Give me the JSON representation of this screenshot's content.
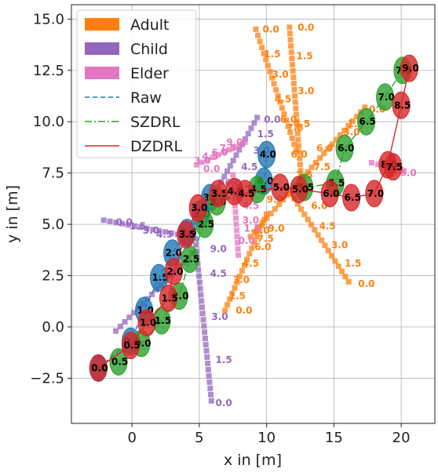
{
  "chart_data": {
    "type": "scatter",
    "xlabel": "x in [m]",
    "ylabel": "y in [m]",
    "xlim": [
      -4.5,
      22.5
    ],
    "ylim": [
      -4.7,
      15.7
    ],
    "xticks": [
      0,
      5,
      10,
      15,
      20
    ],
    "yticks": [
      -2.5,
      0.0,
      2.5,
      5.0,
      7.5,
      10.0,
      12.5,
      15.0
    ],
    "xtick_labels": [
      "0",
      "5",
      "10",
      "15",
      "20"
    ],
    "ytick_labels": [
      "−2.5",
      "0.0",
      "2.5",
      "5.0",
      "7.5",
      "10.0",
      "12.5",
      "15.0"
    ],
    "grid": true,
    "legend_position": "top-left",
    "legend": [
      {
        "label": "Adult",
        "kind": "patch",
        "color": "#ff7f0e"
      },
      {
        "label": "Child",
        "kind": "patch",
        "color": "#9467bd"
      },
      {
        "label": "Elder",
        "kind": "patch",
        "color": "#e377c2"
      },
      {
        "label": "Raw",
        "kind": "line",
        "color": "#1f77b4",
        "dash": "6,4"
      },
      {
        "label": "SZDRL",
        "kind": "line",
        "color": "#2ca02c",
        "dash": "9,3,2,3"
      },
      {
        "label": "DZDRL",
        "kind": "line",
        "color": "#d62728",
        "dash": ""
      }
    ],
    "pedestrians": [
      {
        "group": "Adult",
        "color": "#ff7f0e",
        "start": [
          9.2,
          14.5
        ],
        "end": [
          12.2,
          8.6
        ],
        "labels": [
          [
            "0.0",
            9.7,
            14.5
          ],
          [
            "1.5",
            9.8,
            13.3
          ],
          [
            "3.0",
            10.4,
            12.3
          ],
          [
            "4.5",
            10.6,
            11.1
          ],
          [
            "6.0",
            11.0,
            10.1
          ],
          [
            "7.5",
            11.5,
            9.7
          ]
        ]
      },
      {
        "group": "Adult",
        "color": "#ff7f0e",
        "start": [
          11.7,
          14.6
        ],
        "end": [
          12.6,
          7.0
        ],
        "labels": [
          [
            "0.0",
            12.3,
            14.6
          ],
          [
            "1.5",
            12.2,
            13.2
          ],
          [
            "3.0",
            12.3,
            11.5
          ],
          [
            "4.5",
            12.0,
            9.9
          ],
          [
            "6.0",
            11.8,
            8.4
          ],
          [
            "7.5",
            12.2,
            7.4
          ]
        ]
      },
      {
        "group": "Adult",
        "color": "#ff7f0e",
        "start": [
          17.3,
          10.7
        ],
        "end": [
          8.8,
          4.4
        ],
        "labels": [
          [
            "0.0",
            17.6,
            10.6
          ],
          [
            "1.5",
            16.0,
            9.9
          ],
          [
            "3.0",
            15.7,
            9.5
          ],
          [
            "6.0",
            13.7,
            8.7
          ],
          [
            "7.5",
            13.5,
            7.8
          ],
          [
            "9.0",
            10.0,
            6.2
          ],
          [
            "6.0",
            9.0,
            4.7
          ],
          [
            "7.5",
            9.3,
            4.3
          ]
        ]
      },
      {
        "group": "Adult",
        "color": "#ff7f0e",
        "start": [
          11.8,
          6.5
        ],
        "end": [
          16.1,
          2.2
        ],
        "labels": [
          [
            "6.0",
            13.3,
            5.9
          ],
          [
            "4.5",
            13.9,
            4.9
          ],
          [
            "3.0",
            14.8,
            4.0
          ],
          [
            "1.5",
            15.8,
            3.1
          ],
          [
            "0.0",
            16.8,
            2.1
          ]
        ]
      },
      {
        "group": "Adult",
        "color": "#ff7f0e",
        "start": [
          10.0,
          5.5
        ],
        "end": [
          6.9,
          0.8
        ],
        "labels": [
          [
            "9.0",
            10.1,
            4.8
          ],
          [
            "6.0",
            9.1,
            3.9
          ],
          [
            "4.5",
            8.2,
            3.1
          ],
          [
            "3.0",
            7.5,
            2.3
          ],
          [
            "1.5",
            7.2,
            1.5
          ],
          [
            "0.0",
            7.7,
            0.8
          ]
        ]
      },
      {
        "group": "Child",
        "color": "#9467bd",
        "start": [
          9.3,
          10.2
        ],
        "end": [
          5.3,
          5.5
        ],
        "labels": [
          [
            "0.0",
            9.8,
            10.1
          ],
          [
            "1.5",
            9.3,
            9.4
          ],
          [
            "3.0",
            9.0,
            8.6
          ],
          [
            "4.5",
            8.1,
            7.8
          ],
          [
            "6.0",
            6.9,
            7.0
          ],
          [
            "7.5",
            6.0,
            6.3
          ]
        ]
      },
      {
        "group": "Child",
        "color": "#9467bd",
        "start": [
          -2.1,
          5.2
        ],
        "end": [
          4.3,
          4.4
        ],
        "labels": [
          [
            "0.0",
            -1.2,
            5.1
          ],
          [
            "1.5",
            -0.2,
            4.9
          ],
          [
            "3.0",
            0.8,
            4.7
          ],
          [
            "4.5",
            1.8,
            4.5
          ]
        ]
      },
      {
        "group": "Child",
        "color": "#9467bd",
        "start": [
          -1.2,
          -0.2
        ],
        "end": [
          4.5,
          3.6
        ],
        "labels": []
      },
      {
        "group": "Child",
        "color": "#9467bd",
        "start": [
          4.7,
          4.3
        ],
        "end": [
          5.9,
          -3.6
        ],
        "labels": [
          [
            "9.0",
            5.8,
            3.8
          ],
          [
            "4.5",
            5.8,
            2.6
          ],
          [
            "3.0",
            5.9,
            0.5
          ],
          [
            "1.5",
            6.2,
            -1.6
          ],
          [
            "0.0",
            6.2,
            -3.7
          ]
        ]
      },
      {
        "group": "Elder",
        "color": "#e377c2",
        "start": [
          4.8,
          7.9
        ],
        "end": [
          8.4,
          9.0
        ],
        "labels": [
          [
            "9.0",
            7.0,
            9.0
          ],
          [
            "7.5",
            6.5,
            8.7
          ],
          [
            "6.0",
            5.9,
            8.5
          ],
          [
            "4.5",
            5.2,
            8.3
          ],
          [
            "3.0",
            4.6,
            8.1
          ],
          [
            "0.0",
            5.3,
            7.7
          ]
        ]
      },
      {
        "group": "Elder",
        "color": "#e377c2",
        "start": [
          17.8,
          8.0
        ],
        "end": [
          20.2,
          7.6
        ],
        "labels": [
          [
            "9.0",
            18.3,
            8.0
          ],
          [
            "7.5",
            19.0,
            7.6
          ],
          [
            "6.0",
            19.9,
            7.5
          ]
        ]
      },
      {
        "group": "Elder",
        "color": "#e377c2",
        "start": [
          7.5,
          7.4
        ],
        "end": [
          7.9,
          3.5
        ],
        "labels": [
          [
            "6.0",
            8.0,
            6.5
          ],
          [
            "4.5",
            8.2,
            5.9
          ],
          [
            "3.0",
            8.2,
            5.2
          ],
          [
            "1.5",
            8.3,
            4.8
          ],
          [
            "0.0",
            7.9,
            4.2
          ]
        ]
      }
    ],
    "robots": [
      {
        "name": "Raw",
        "color": "#1f77b4",
        "dash": "6,4",
        "points": [
          [
            -2.5,
            -2.0,
            "0.0"
          ],
          [
            -0.1,
            -0.7,
            "0.5"
          ],
          [
            0.9,
            0.8,
            "1.0"
          ],
          [
            2.0,
            2.4,
            "1.5"
          ],
          [
            3.0,
            3.6,
            "2.0"
          ],
          [
            4.1,
            4.6,
            "2.5"
          ],
          [
            5.1,
            5.5,
            "3.0"
          ],
          [
            5.8,
            6.3,
            "3.5"
          ],
          [
            9.8,
            7.1,
            "4.0"
          ],
          [
            10.0,
            8.4,
            "4.0"
          ]
        ]
      },
      {
        "name": "SZDRL",
        "color": "#2ca02c",
        "dash": "9,3,2,3",
        "points": [
          [
            -1.0,
            -1.7,
            "0.5"
          ],
          [
            0.7,
            -0.8,
            "0.0"
          ],
          [
            2.2,
            0.3,
            "1.5"
          ],
          [
            3.5,
            1.5,
            "2.0"
          ],
          [
            4.3,
            3.3,
            "2.5"
          ],
          [
            5.4,
            5.0,
            "2.5"
          ],
          [
            6.3,
            6.1,
            "3.0"
          ],
          [
            9.3,
            6.7,
            "4.5"
          ],
          [
            12.8,
            6.8,
            "5.5"
          ],
          [
            15.1,
            7.0,
            "5.5"
          ],
          [
            15.8,
            8.7,
            "6.0"
          ],
          [
            17.4,
            10.0,
            "6.5"
          ],
          [
            18.8,
            11.2,
            "7.0"
          ],
          [
            20.1,
            12.5,
            "7.5"
          ]
        ]
      },
      {
        "name": "DZDRL",
        "color": "#d62728",
        "dash": "",
        "points": [
          [
            -2.5,
            -2.0,
            "0.0"
          ],
          [
            -0.1,
            -0.9,
            "0.5"
          ],
          [
            1.1,
            0.2,
            "1.0"
          ],
          [
            2.7,
            1.4,
            "1.5"
          ],
          [
            3.1,
            2.7,
            "2.0"
          ],
          [
            4.0,
            4.5,
            "3.5"
          ],
          [
            4.9,
            5.8,
            "3.0"
          ],
          [
            6.4,
            6.5,
            "3.5"
          ],
          [
            7.6,
            6.6,
            "4.0"
          ],
          [
            8.4,
            6.5,
            "4.5"
          ],
          [
            11.0,
            6.8,
            "5.0"
          ],
          [
            12.4,
            6.7,
            "5.0"
          ],
          [
            14.7,
            6.5,
            "6.0"
          ],
          [
            16.3,
            6.3,
            "6.5"
          ],
          [
            18.0,
            6.5,
            "7.0"
          ],
          [
            19.0,
            7.9,
            "8.0"
          ],
          [
            20.0,
            10.8,
            "8.5"
          ],
          [
            20.6,
            12.6,
            "9.0"
          ],
          [
            19.4,
            7.8,
            "7.5"
          ]
        ]
      }
    ]
  }
}
